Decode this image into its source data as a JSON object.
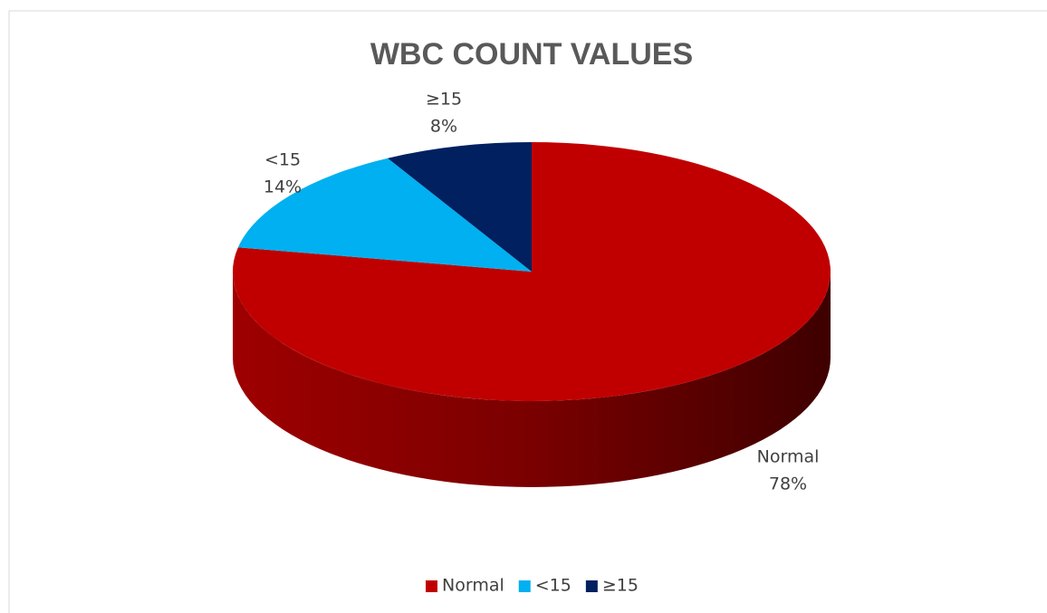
{
  "chart_data": {
    "type": "pie",
    "title": "WBC COUNT VALUES",
    "categories": [
      "Normal",
      "<15",
      "≥15"
    ],
    "values": [
      78,
      14,
      8
    ],
    "value_labels": [
      "78%",
      "14%",
      "8%"
    ],
    "colors": [
      "#c00000",
      "#00b0f0",
      "#002060"
    ],
    "legend": "bottom"
  }
}
